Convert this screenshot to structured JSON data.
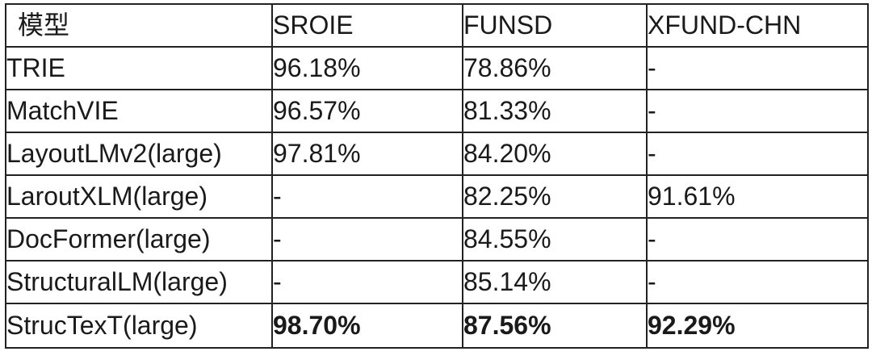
{
  "table": {
    "headers": [
      "模型",
      "SROIE",
      "FUNSD",
      "XFUND-CHN"
    ],
    "rows": [
      {
        "model": "TRIE",
        "sroie": "96.18%",
        "funsd": "78.86%",
        "xfund": "-"
      },
      {
        "model": "MatchVIE",
        "sroie": "96.57%",
        "funsd": "81.33%",
        "xfund": "-"
      },
      {
        "model": "LayoutLMv2(large)",
        "sroie": "97.81%",
        "funsd": "84.20%",
        "xfund": "-"
      },
      {
        "model": "LaroutXLM(large)",
        "sroie": "-",
        "funsd": "82.25%",
        "xfund": "91.61%"
      },
      {
        "model": "DocFormer(large)",
        "sroie": "-",
        "funsd": "84.55%",
        "xfund": "-"
      },
      {
        "model": "StructuralLM(large)",
        "sroie": "-",
        "funsd": "85.14%",
        "xfund": "-"
      },
      {
        "model": "StrucTexT(large)",
        "sroie": "98.70%",
        "funsd": "87.56%",
        "xfund": "92.29%"
      }
    ]
  }
}
